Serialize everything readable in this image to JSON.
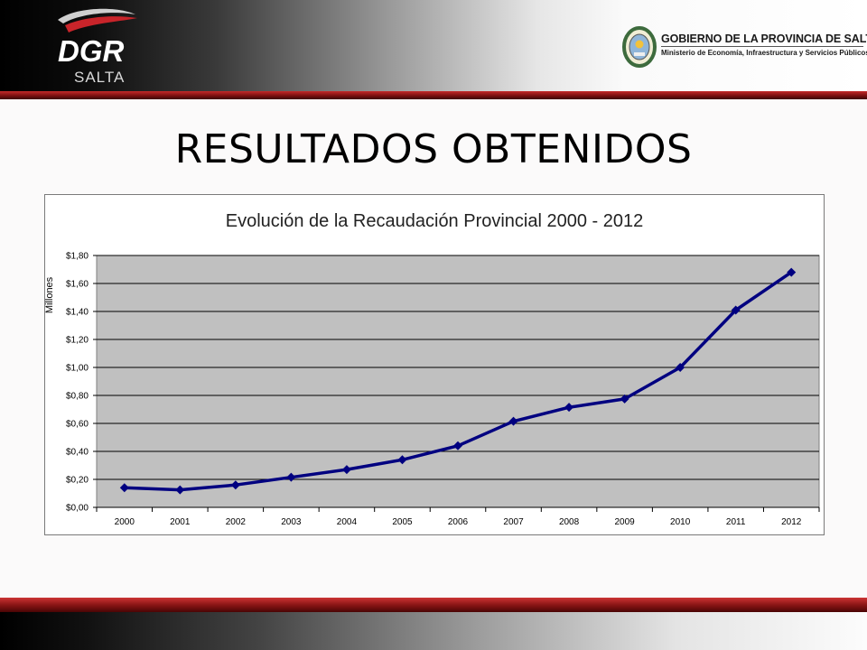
{
  "header": {
    "logo_text": "DGR",
    "logo_subtext": "SALTA",
    "gov_title": "GOBIERNO DE LA PROVINCIA DE SALTA.",
    "gov_subtitle": "Ministerio de Economía, Infraestructura y Servicios Públicos."
  },
  "slide": {
    "title": "RESULTADOS OBTENIDOS"
  },
  "chart_data": {
    "type": "line",
    "title": "Evolución de la Recaudación Provincial 2000 - 2012",
    "ylabel": "Millones",
    "xlabel": "",
    "categories": [
      "2000",
      "2001",
      "2002",
      "2003",
      "2004",
      "2005",
      "2006",
      "2007",
      "2008",
      "2009",
      "2010",
      "2011",
      "2012"
    ],
    "values": [
      0.14,
      0.125,
      0.16,
      0.215,
      0.27,
      0.34,
      0.44,
      0.615,
      0.715,
      0.775,
      1.0,
      1.41,
      1.68
    ],
    "ylim": [
      0,
      1.8
    ],
    "yticks": [
      "$0,00",
      "$0,20",
      "$0,40",
      "$0,60",
      "$0,80",
      "$1,00",
      "$1,20",
      "$1,40",
      "$1,60",
      "$1,80"
    ],
    "grid": true,
    "plot_bg": "#c0c0c0",
    "line_color": "#000080",
    "legend": "none"
  }
}
